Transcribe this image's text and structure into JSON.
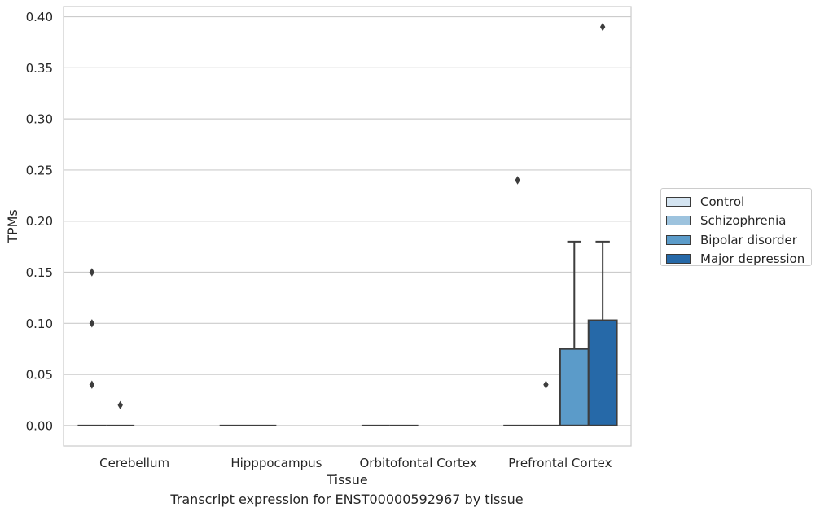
{
  "chart_data": {
    "type": "box",
    "title": "",
    "caption": "Transcript expression for ENST00000592967 by tissue",
    "xlabel": "Tissue",
    "ylabel": "TPMs",
    "ylim": [
      -0.02,
      0.41
    ],
    "yticks": [
      "0.00",
      "0.05",
      "0.10",
      "0.15",
      "0.20",
      "0.25",
      "0.30",
      "0.35",
      "0.40"
    ],
    "grid": true,
    "legend_position": "right",
    "categories": [
      "Cerebellum",
      "Hipppocampus",
      "Orbitofontal Cortex",
      "Prefrontal Cortex"
    ],
    "series": [
      {
        "name": "Control",
        "color": "#d4e4f1",
        "boxes": [
          {
            "q1": 0,
            "median": 0,
            "q3": 0,
            "whisker_low": 0,
            "whisker_high": 0,
            "outliers": [
              0.15,
              0.1,
              0.04
            ]
          },
          {
            "q1": 0,
            "median": 0,
            "q3": 0,
            "whisker_low": 0,
            "whisker_high": 0,
            "outliers": []
          },
          {
            "q1": 0,
            "median": 0,
            "q3": 0,
            "whisker_low": 0,
            "whisker_high": 0,
            "outliers": []
          },
          {
            "q1": 0,
            "median": 0,
            "q3": 0,
            "whisker_low": 0,
            "whisker_high": 0,
            "outliers": [
              0.24
            ]
          }
        ]
      },
      {
        "name": "Schizophrenia",
        "color": "#9dc3de",
        "boxes": [
          {
            "q1": 0,
            "median": 0,
            "q3": 0,
            "whisker_low": 0,
            "whisker_high": 0,
            "outliers": [
              0.02
            ]
          },
          {
            "q1": 0,
            "median": 0,
            "q3": 0,
            "whisker_low": 0,
            "whisker_high": 0,
            "outliers": []
          },
          {
            "q1": 0,
            "median": 0,
            "q3": 0,
            "whisker_low": 0,
            "whisker_high": 0,
            "outliers": []
          },
          {
            "q1": 0,
            "median": 0,
            "q3": 0,
            "whisker_low": 0,
            "whisker_high": 0,
            "outliers": [
              0.04
            ]
          }
        ]
      },
      {
        "name": "Bipolar disorder",
        "color": "#5b9bc9",
        "boxes": [
          null,
          null,
          null,
          {
            "q1": 0,
            "median": 0,
            "q3": 0.075,
            "whisker_low": 0,
            "whisker_high": 0.18,
            "outliers": []
          }
        ]
      },
      {
        "name": "Major depression",
        "color": "#2669a8",
        "boxes": [
          null,
          null,
          null,
          {
            "q1": 0,
            "median": 0,
            "q3": 0.103,
            "whisker_low": 0,
            "whisker_high": 0.18,
            "outliers": [
              0.39
            ]
          }
        ]
      }
    ]
  }
}
